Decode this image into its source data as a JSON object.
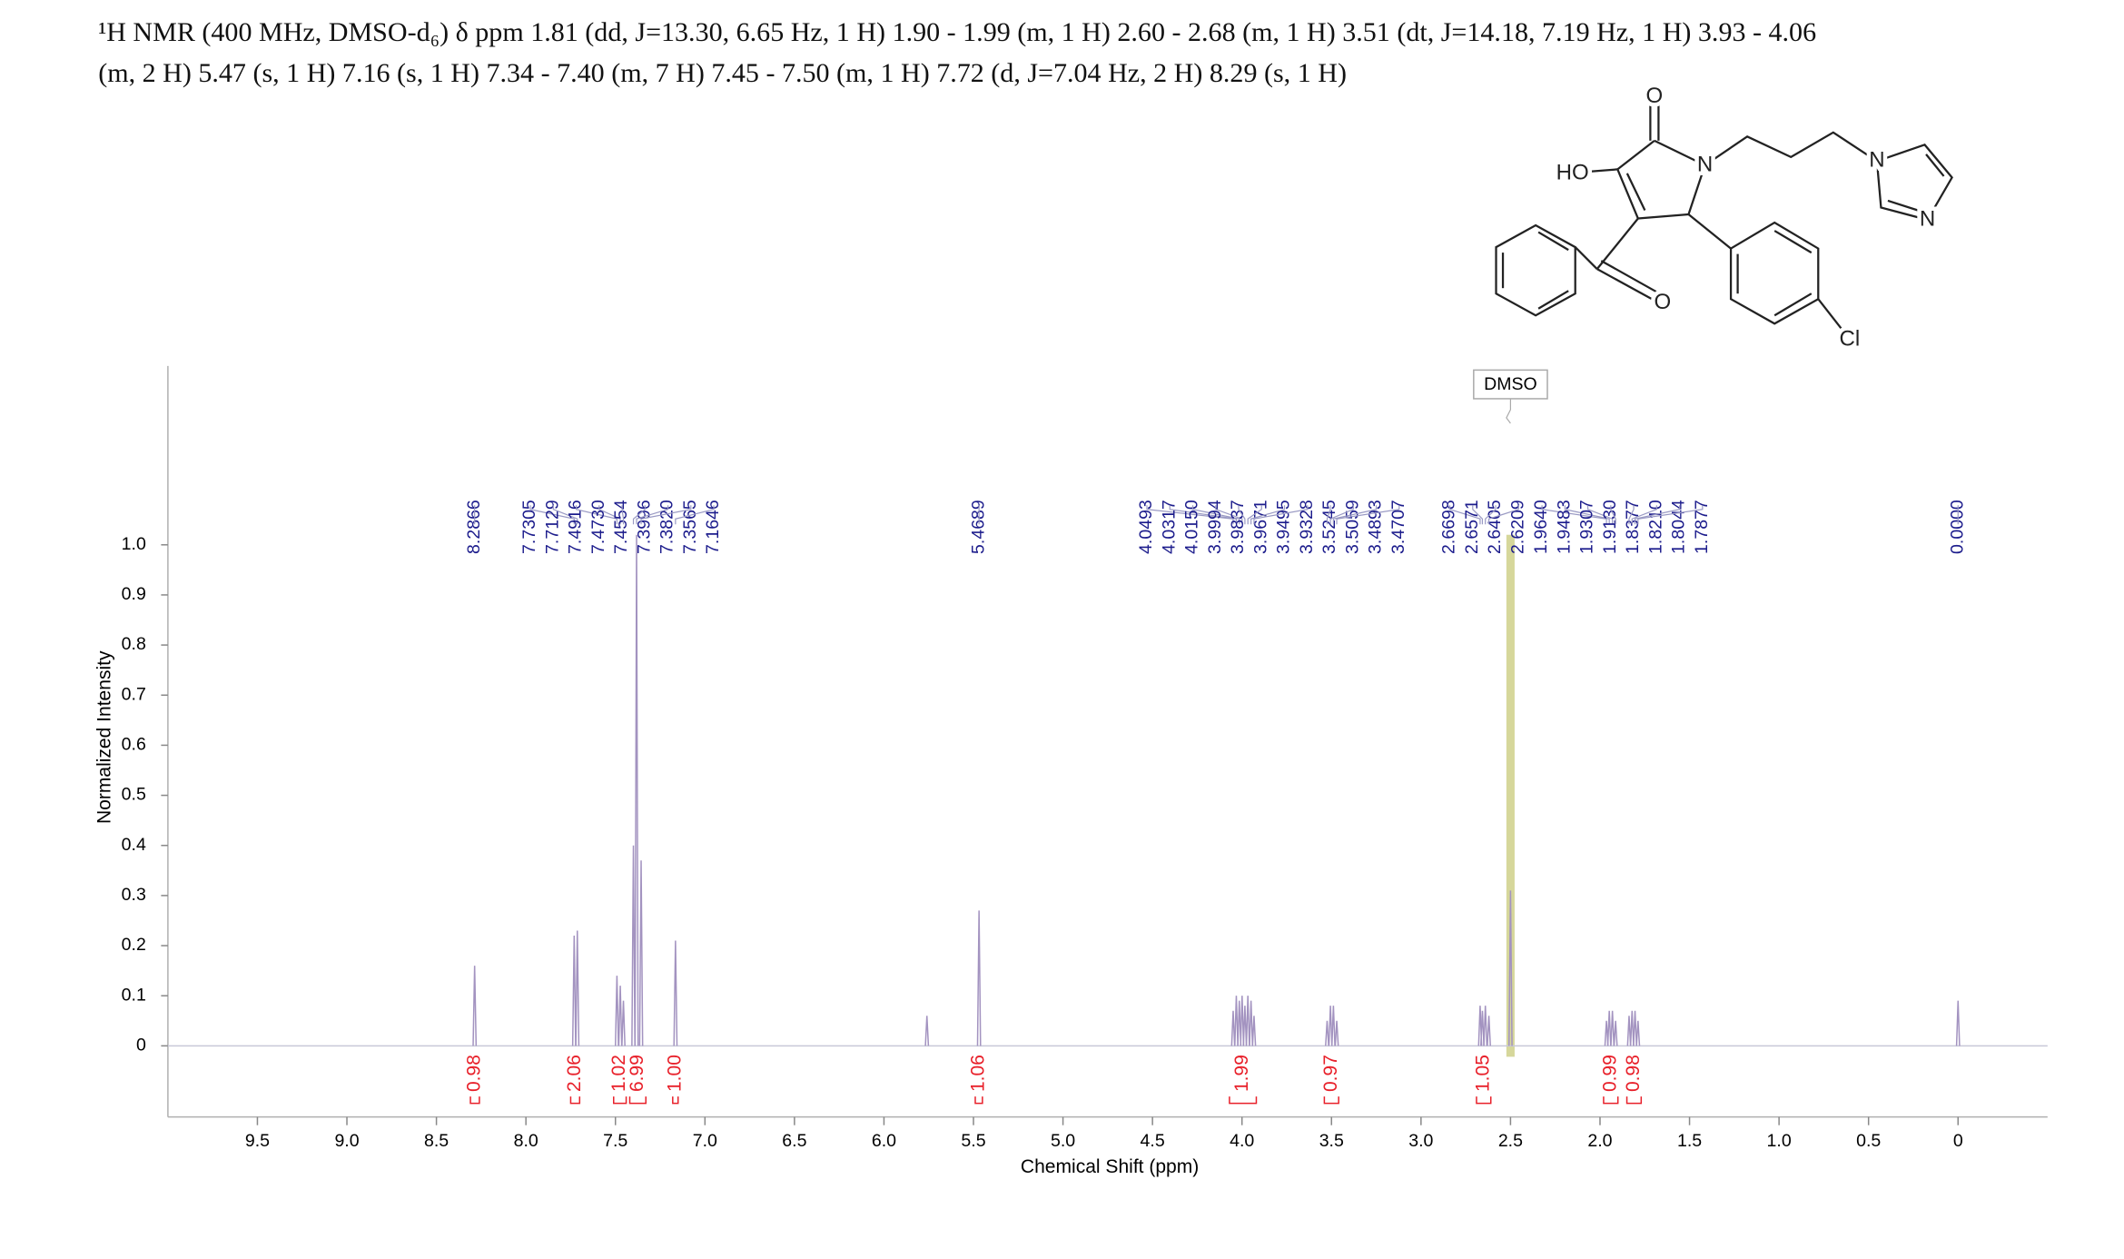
{
  "chart_data": {
    "type": "spectrum",
    "title": [
      "¹H NMR (400 MHz, DMSO-d₆) δ ppm 1.81 (dd, J=13.30, 6.65 Hz, 1 H) 1.90 - 1.99 (m, 1 H) 2.60 - 2.68 (m, 1 H) 3.51 (dt, J=14.18, 7.19 Hz, 1 H) 3.93 - 4.06",
      "(m, 2 H) 5.47 (s, 1 H) 7.16 (s, 1 H) 7.34 - 7.40 (m, 7 H) 7.45 - 7.50 (m, 1 H) 7.72 (d, J=7.04 Hz, 2 H) 8.29 (s, 1 H)"
    ],
    "x_label": "Chemical Shift (ppm)",
    "y_label": "Normalized Intensity",
    "xlim": [
      10,
      -0.5
    ],
    "ylim": [
      -0.142,
      1.357
    ],
    "xticks": [
      9.5,
      {
        "value": 9,
        "label": "9.0"
      },
      8.5,
      {
        "value": 8,
        "label": "8.0"
      },
      7.5,
      {
        "value": 7,
        "label": "7.0"
      },
      6.5,
      {
        "value": 6,
        "label": "6.0"
      },
      5.5,
      {
        "value": 5,
        "label": "5.0"
      },
      4.5,
      {
        "value": 4,
        "label": "4.0"
      },
      3.5,
      {
        "value": 3,
        "label": "3.0"
      },
      2.5,
      {
        "value": 2,
        "label": "2.0"
      },
      1.5,
      {
        "value": 1,
        "label": "1.0"
      },
      0.5,
      0
    ],
    "yticks": [
      0,
      0.1,
      0.2,
      0.3,
      0.4,
      0.5,
      0.6,
      0.7,
      0.8,
      0.9,
      {
        "value": 1,
        "label": "1.0"
      }
    ],
    "color": "#a393c0",
    "x": [
      8.2866,
      7.7305,
      7.7129,
      7.4916,
      7.473,
      7.4554,
      7.3996,
      7.382,
      7.3565,
      7.1646,
      5.76,
      5.4689,
      4.0493,
      4.0317,
      4.015,
      3.9994,
      3.9837,
      3.9671,
      3.9495,
      3.9328,
      3.5245,
      3.5059,
      3.4893,
      3.4707,
      2.6698,
      2.6571,
      2.6405,
      2.6209,
      2.5,
      1.964,
      1.9483,
      1.9307,
      1.913,
      1.8377,
      1.821,
      1.8044,
      1.7877,
      0
    ],
    "values": [
      0.16,
      0.22,
      0.23,
      0.14,
      0.12,
      0.09,
      0.4,
      1.02,
      0.37,
      0.21,
      0.06,
      0.27,
      0.07,
      0.1,
      0.09,
      0.1,
      0.08,
      0.1,
      0.09,
      0.06,
      0.05,
      0.08,
      0.08,
      0.05,
      0.08,
      0.07,
      0.08,
      0.06,
      0.31,
      0.05,
      0.07,
      0.07,
      0.05,
      0.06,
      0.07,
      0.07,
      0.05,
      0.09
    ],
    "peak_label_color": "#1c1c8c",
    "peak_labels": [
      {
        "value": 8.2866,
        "label": "8.2866"
      },
      {
        "value": 7.7305,
        "label": "7.7305"
      },
      {
        "value": 7.7129,
        "label": "7.7129"
      },
      {
        "value": 7.4916,
        "label": "7.4916"
      },
      {
        "value": 7.473,
        "label": "7.4730"
      },
      {
        "value": 7.4554,
        "label": "7.4554"
      },
      {
        "value": 7.3996,
        "label": "7.3996"
      },
      {
        "value": 7.382,
        "label": "7.3820"
      },
      {
        "value": 7.3565,
        "label": "7.3565"
      },
      {
        "value": 7.1646,
        "label": "7.1646"
      },
      {
        "value": 5.4689,
        "label": "5.4689"
      },
      {
        "value": 4.0493,
        "label": "4.0493"
      },
      {
        "value": 4.0317,
        "label": "4.0317"
      },
      {
        "value": 4.015,
        "label": "4.0150"
      },
      {
        "value": 3.9994,
        "label": "3.9994"
      },
      {
        "value": 3.9837,
        "label": "3.9837"
      },
      {
        "value": 3.9671,
        "label": "3.9671"
      },
      {
        "value": 3.9495,
        "label": "3.9495"
      },
      {
        "value": 3.9328,
        "label": "3.9328"
      },
      {
        "value": 3.5245,
        "label": "3.5245"
      },
      {
        "value": 3.5059,
        "label": "3.5059"
      },
      {
        "value": 3.4893,
        "label": "3.4893"
      },
      {
        "value": 3.4707,
        "label": "3.4707"
      },
      {
        "value": 2.6698,
        "label": "2.6698"
      },
      {
        "value": 2.6571,
        "label": "2.6571"
      },
      {
        "value": 2.6405,
        "label": "2.6405"
      },
      {
        "value": 2.6209,
        "label": "2.6209"
      },
      {
        "value": 1.964,
        "label": "1.9640"
      },
      {
        "value": 1.9483,
        "label": "1.9483"
      },
      {
        "value": 1.9307,
        "label": "1.9307"
      },
      {
        "value": 1.913,
        "label": "1.9130"
      },
      {
        "value": 1.8377,
        "label": "1.8377"
      },
      {
        "value": 1.821,
        "label": "1.8210"
      },
      {
        "value": 1.8044,
        "label": "1.8044"
      },
      {
        "value": 1.7877,
        "label": "1.7877"
      },
      {
        "value": 0,
        "label": "0.0000"
      }
    ],
    "integral_color": "#e8202a",
    "integrals": {
      "ranges": [
        [
          8.31,
          8.26
        ],
        [
          7.75,
          7.7
        ],
        [
          7.51,
          7.44
        ],
        [
          7.42,
          7.33
        ],
        [
          7.18,
          7.15
        ],
        [
          5.49,
          5.45
        ],
        [
          4.07,
          3.92
        ],
        [
          3.54,
          3.46
        ],
        [
          2.69,
          2.61
        ],
        [
          1.98,
          1.9
        ],
        [
          1.85,
          1.77
        ]
      ],
      "values": [
        0.98,
        2.06,
        1.02,
        6.99,
        1,
        1.06,
        1.99,
        0.97,
        1.05,
        0.99,
        0.98
      ],
      "value_labels": [
        "0.98",
        "2.06",
        "1.02",
        "6.99",
        "1.00",
        "1.06",
        "1.99",
        "0.97",
        "1.05",
        "0.99",
        "0.98"
      ]
    },
    "annotations": [
      {
        "text": "DMSO",
        "x": 2.5
      }
    ],
    "highlight": [
      2.523,
      2.477
    ],
    "highlight_color": "#cfd08a"
  },
  "structure": {
    "atoms": [
      "O",
      "HO",
      "N",
      "N",
      "N",
      "O",
      "Cl"
    ]
  }
}
